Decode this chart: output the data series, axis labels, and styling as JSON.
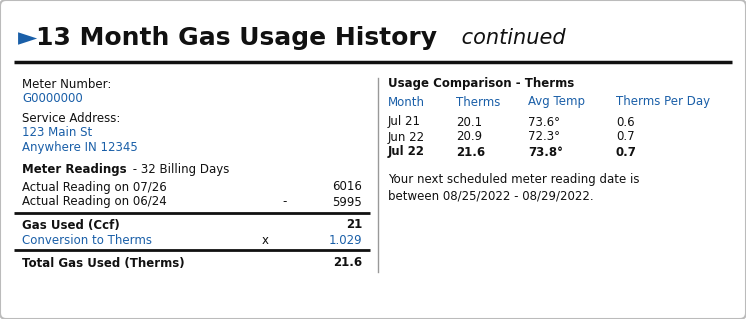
{
  "title_arrow": "►",
  "title_main": "13 Month Gas Usage History",
  "title_italic": " continued",
  "bg_color": "#ffffff",
  "border_color": "#bbbbbb",
  "divider_color": "#111111",
  "blue_color": "#1a5fa8",
  "black_color": "#111111",
  "meter_number_label": "Meter Number:",
  "meter_number_value": "G0000000",
  "service_address_label": "Service Address:",
  "service_address_line1": "123 Main St",
  "service_address_line2": "Anywhere IN 12345",
  "meter_readings_bold": "Meter Readings",
  "meter_readings_normal": " - 32 Billing Days",
  "reading1_label": "Actual Reading on 07/26",
  "reading1_value": "6016",
  "reading2_label": "Actual Reading on 06/24",
  "reading2_dash": "-",
  "reading2_value": "5995",
  "gas_used_label": "Gas Used (Ccf)",
  "gas_used_value": "21",
  "conversion_label": "Conversion to Therms",
  "conversion_x": "x",
  "conversion_value": "1.029",
  "total_label": "Total Gas Used (Therms)",
  "total_value": "21.6",
  "usage_title": "Usage Comparison - Therms",
  "usage_col1": "Month",
  "usage_col2": "Therms",
  "usage_col3": "Avg Temp",
  "usage_col4": "Therms Per Day",
  "usage_rows": [
    [
      "Jul 21",
      "20.1",
      "73.6°",
      "0.6",
      false
    ],
    [
      "Jun 22",
      "20.9",
      "72.3°",
      "0.7",
      false
    ],
    [
      "Jul 22",
      "21.6",
      "73.8°",
      "0.7",
      true
    ]
  ],
  "next_reading_line1": "Your next scheduled meter reading date is",
  "next_reading_line2": "between 08/25/2022 - 08/29/2022.",
  "fig_width": 7.46,
  "fig_height": 3.19,
  "dpi": 100
}
